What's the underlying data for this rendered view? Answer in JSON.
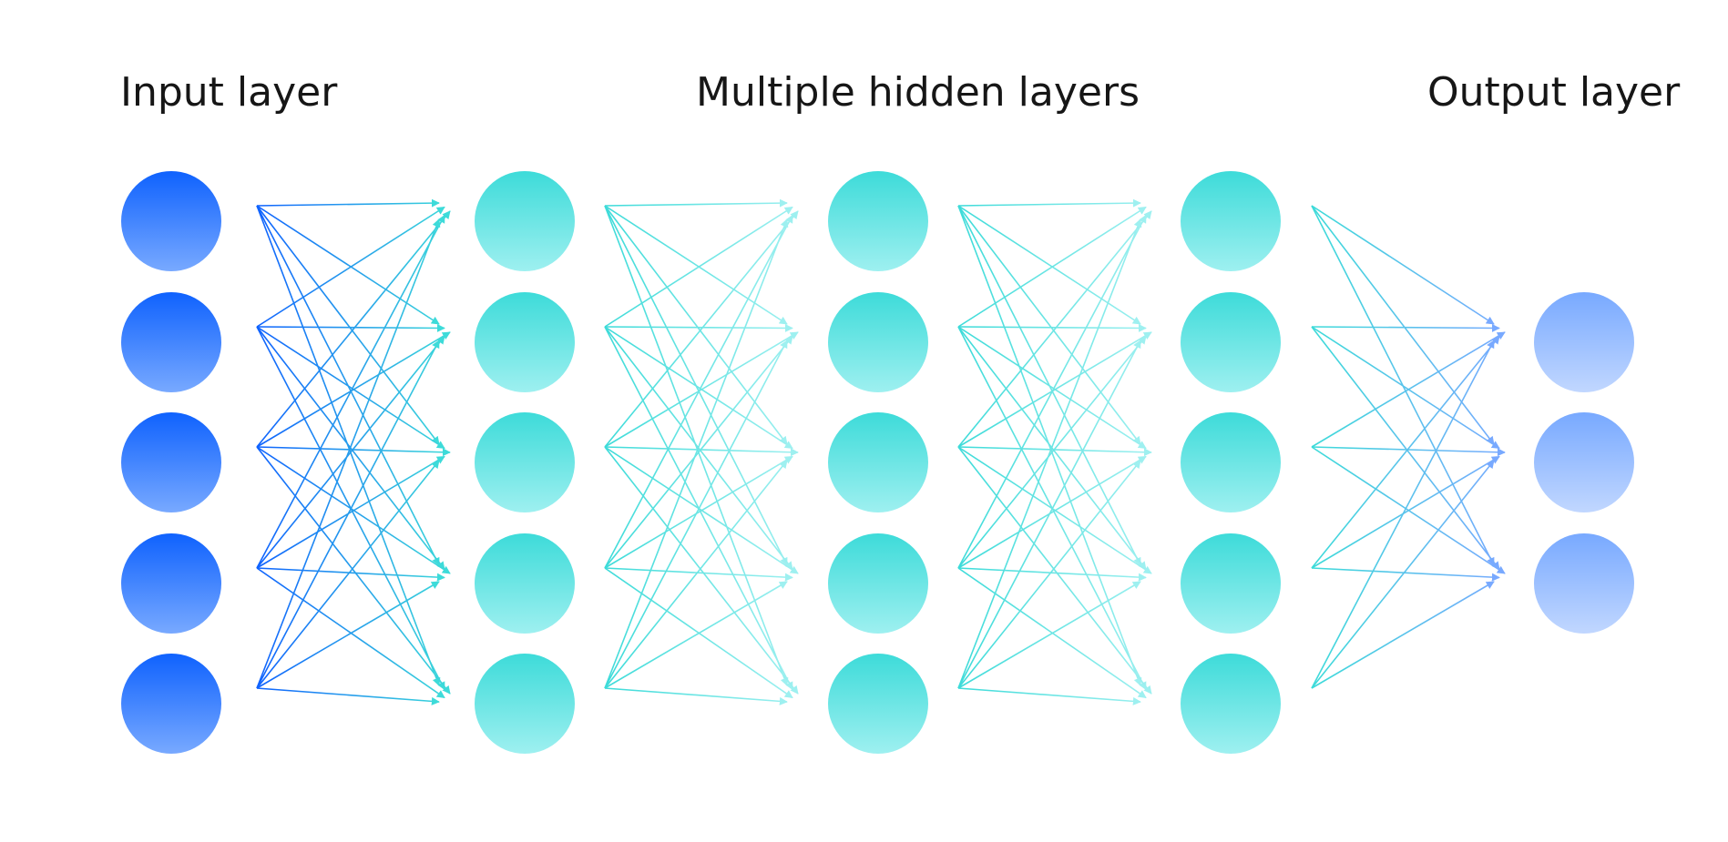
{
  "labels": {
    "input": "Input layer",
    "hidden": "Multiple hidden layers",
    "output": "Output layer"
  },
  "network": {
    "layers": [
      {
        "kind": "input",
        "nodes": 5
      },
      {
        "kind": "hidden",
        "nodes": 5
      },
      {
        "kind": "hidden",
        "nodes": 5
      },
      {
        "kind": "hidden",
        "nodes": 5
      },
      {
        "kind": "output",
        "nodes": 3
      }
    ],
    "fully_connected": true,
    "arrow_direction": "left-to-right"
  },
  "colors": {
    "input_node_top": "#0f62fe",
    "input_node_bottom": "#78a9ff",
    "hidden_node_top": "#3ddbd9",
    "hidden_node_bottom": "#9ef0f0",
    "output_node_top": "#78a9ff",
    "output_node_bottom": "#c1d7ff",
    "edge_input": "#0f62fe",
    "edge_hidden": "#3ddbd9",
    "edge_hidden_light": "#9ef0f0",
    "edge_output": "#78a9ff",
    "label_text": "#161616"
  }
}
